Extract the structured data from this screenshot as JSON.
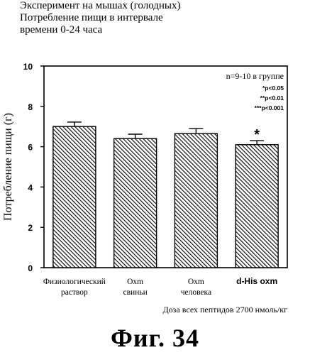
{
  "header": {
    "title_lines": [
      "Эксперимент на мышах (голодных)",
      "Потребление пищи в интервале",
      "времени 0-24 часа"
    ]
  },
  "chart_data": {
    "type": "bar",
    "ylabel": "Потребление пищи (г)",
    "xlabel": "Доза всех пептидов 2700 нмоль/кг",
    "ylim": [
      0,
      10
    ],
    "yticks": [
      0,
      2,
      4,
      6,
      8,
      10
    ],
    "grid": false,
    "categories": [
      [
        "Физиологический",
        "раствор"
      ],
      [
        "Oxm",
        "свиньи"
      ],
      [
        "Oxm",
        "человека"
      ],
      [
        "d-His oxm"
      ]
    ],
    "values": [
      7.0,
      6.4,
      6.65,
      6.1
    ],
    "errors": [
      0.22,
      0.22,
      0.25,
      0.2
    ],
    "significance_marks": [
      "",
      "",
      "",
      "*"
    ],
    "bar_pattern": "diagonal-hatch",
    "annotations": {
      "n": "n=9-10 в группе",
      "p_levels": [
        "*p<0.05",
        "**p<0.01",
        "***p<0.001"
      ]
    }
  },
  "figure": {
    "caption": "Фиг. 34"
  }
}
